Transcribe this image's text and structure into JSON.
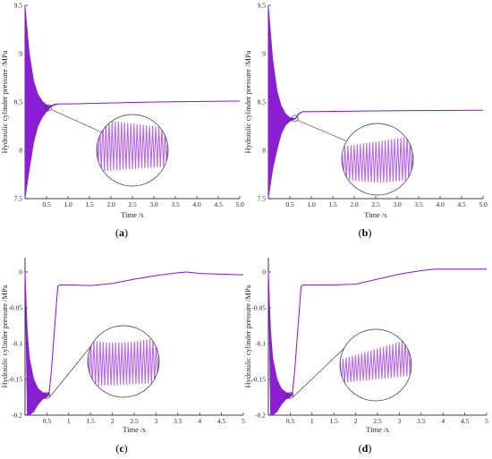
{
  "colors": {
    "series": "#8a1fd1",
    "zoom": "#b66ae6",
    "axis": "#000000",
    "callout": "#333333"
  },
  "chart_data": [
    {
      "panel": "a",
      "type": "line",
      "xlabel": "Time /s",
      "ylabel": "Hydraulic cylinder pressure /MPa",
      "xlim": [
        0,
        5.0
      ],
      "ylim": [
        7.5,
        9.5
      ],
      "xticks": [
        "0.5",
        "1.0",
        "1.5",
        "2.0",
        "2.5",
        "3.0",
        "3.5",
        "4.0",
        "4.5",
        "5.0"
      ],
      "yticks": [
        "7.5",
        "8",
        "8.5",
        "9",
        "9.5"
      ],
      "series": [
        {
          "x": [
            0.0,
            0.1,
            0.2,
            0.3,
            0.4,
            0.5,
            0.55,
            0.6,
            0.7,
            0.8,
            1.0,
            2.0,
            3.0,
            4.0,
            5.0
          ],
          "upper": [
            9.5,
            9.0,
            8.72,
            8.58,
            8.51,
            8.47,
            8.46,
            8.46,
            8.48,
            8.48,
            8.48,
            8.49,
            8.5,
            8.505,
            8.51
          ],
          "lower": [
            7.5,
            7.8,
            8.08,
            8.25,
            8.34,
            8.4,
            8.42,
            8.45,
            8.47,
            8.48,
            8.48,
            8.49,
            8.5,
            8.505,
            8.51
          ]
        }
      ],
      "annotation": "zoom-inset"
    },
    {
      "panel": "b",
      "type": "line",
      "xlabel": "Time /s",
      "ylabel": "Hydraulic cylinder pressure /MPa",
      "xlim": [
        0,
        5.0
      ],
      "ylim": [
        7.5,
        9.5
      ],
      "xticks": [
        "0.5",
        "1.0",
        "1.5",
        "2.0",
        "2.5",
        "3.0",
        "3.5",
        "4.0",
        "4.5",
        "5.0"
      ],
      "yticks": [
        "7.5",
        "8",
        "8.5",
        "9",
        "9.5"
      ],
      "series": [
        {
          "x": [
            0.0,
            0.1,
            0.2,
            0.3,
            0.4,
            0.5,
            0.6,
            0.65,
            0.7,
            0.8,
            1.0,
            2.0,
            3.0,
            4.0,
            5.0
          ],
          "upper": [
            9.5,
            8.95,
            8.62,
            8.46,
            8.38,
            8.34,
            8.33,
            8.34,
            8.38,
            8.4,
            8.4,
            8.405,
            8.41,
            8.412,
            8.415
          ],
          "lower": [
            7.5,
            7.8,
            8.0,
            8.17,
            8.26,
            8.3,
            8.32,
            8.33,
            8.37,
            8.4,
            8.4,
            8.405,
            8.41,
            8.412,
            8.415
          ]
        }
      ],
      "annotation": "zoom-inset"
    },
    {
      "panel": "c",
      "type": "line",
      "xlabel": "Time /s",
      "ylabel": "Hydraulic cylinder pressure /MPa",
      "xlim": [
        0,
        5
      ],
      "ylim": [
        -0.2,
        0.02
      ],
      "xticks": [
        "0.5",
        "1",
        "1.5",
        "2",
        "2.5",
        "3",
        "3.5",
        "4",
        "4.5",
        "5"
      ],
      "yticks": [
        "-0.2",
        "-0.15",
        "-0.1",
        "-0.05",
        "0"
      ],
      "series": [
        {
          "x": [
            0.0,
            0.05,
            0.1,
            0.2,
            0.3,
            0.4,
            0.5,
            0.55,
            0.6,
            0.7,
            0.75,
            0.8,
            1.0,
            1.5,
            2.0,
            2.5,
            3.0,
            3.5,
            3.7,
            4.0,
            4.5,
            5.0
          ],
          "upper": [
            0.0,
            -0.08,
            -0.12,
            -0.15,
            -0.163,
            -0.168,
            -0.17,
            -0.168,
            -0.14,
            -0.06,
            -0.02,
            -0.018,
            -0.018,
            -0.019,
            -0.016,
            -0.01,
            -0.005,
            -0.001,
            0.0,
            -0.002,
            -0.003,
            -0.004
          ],
          "lower": [
            0.0,
            -0.2,
            -0.2,
            -0.195,
            -0.185,
            -0.178,
            -0.175,
            -0.172,
            -0.14,
            -0.06,
            -0.02,
            -0.018,
            -0.018,
            -0.019,
            -0.016,
            -0.01,
            -0.005,
            -0.001,
            0.0,
            -0.002,
            -0.003,
            -0.004
          ]
        }
      ],
      "annotation": "zoom-inset"
    },
    {
      "panel": "d",
      "type": "line",
      "xlabel": "Time /s",
      "ylabel": "Hydraulic cylinder pressure /MPa",
      "xlim": [
        0,
        5
      ],
      "ylim": [
        -0.2,
        0.02
      ],
      "xticks": [
        "0.5",
        "1",
        "1.5",
        "2",
        "2.5",
        "3",
        "3.5",
        "4",
        "4.5",
        "5"
      ],
      "yticks": [
        "-0.2",
        "-0.15",
        "-0.1",
        "-0.05",
        "0"
      ],
      "series": [
        {
          "x": [
            0.0,
            0.05,
            0.1,
            0.2,
            0.3,
            0.4,
            0.5,
            0.55,
            0.6,
            0.7,
            0.75,
            0.8,
            1.0,
            1.5,
            2.0,
            2.5,
            3.0,
            3.5,
            3.8,
            4.0,
            4.5,
            5.0
          ],
          "upper": [
            0.0,
            -0.08,
            -0.12,
            -0.15,
            -0.163,
            -0.168,
            -0.17,
            -0.168,
            -0.14,
            -0.06,
            -0.02,
            -0.018,
            -0.018,
            -0.018,
            -0.017,
            -0.01,
            -0.003,
            0.002,
            0.004,
            0.004,
            0.004,
            0.004
          ],
          "lower": [
            0.0,
            -0.2,
            -0.2,
            -0.195,
            -0.185,
            -0.178,
            -0.175,
            -0.172,
            -0.14,
            -0.06,
            -0.02,
            -0.018,
            -0.018,
            -0.018,
            -0.017,
            -0.01,
            -0.003,
            0.002,
            0.004,
            0.004,
            0.004,
            0.004
          ]
        }
      ],
      "annotation": "zoom-inset"
    }
  ]
}
